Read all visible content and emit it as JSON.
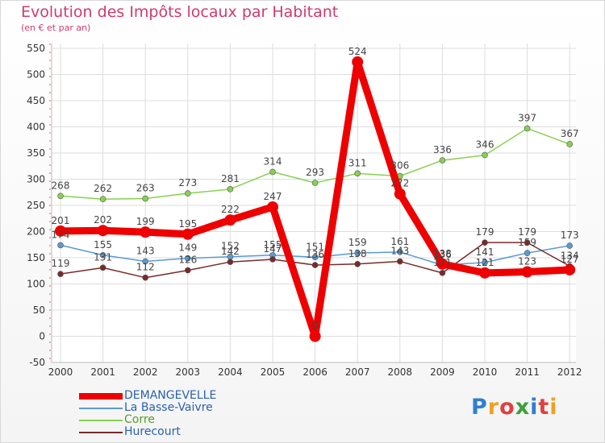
{
  "title": "Evolution des Impôts locaux par Habitant",
  "subtitle": "(en € et par an)",
  "logo_text": "Proxiti",
  "chart_data": {
    "type": "line",
    "x": [
      "2000",
      "2001",
      "2002",
      "2003",
      "2004",
      "2005",
      "2006",
      "2007",
      "2008",
      "2009",
      "2010",
      "2011",
      "2012"
    ],
    "y_ticks": [
      -50,
      0,
      50,
      100,
      150,
      200,
      250,
      300,
      350,
      400,
      450,
      500,
      550
    ],
    "ylim": [
      -50,
      550
    ],
    "grid": true,
    "legend_position": "bottom-left",
    "series": [
      {
        "name": "DEMANGEVELLE",
        "color": "#ee0000",
        "values": [
          201,
          202,
          199,
          195,
          222,
          247,
          0,
          524,
          272,
          138,
          121,
          123,
          127
        ],
        "labels": [
          "201",
          "202",
          "199",
          "195",
          "222",
          "247",
          "0",
          "524",
          "272",
          "138",
          "121",
          "123",
          "127"
        ]
      },
      {
        "name": "La Basse-Vaivre",
        "color": "#5b9bd0",
        "values": [
          174,
          155,
          143,
          149,
          152,
          155,
          151,
          159,
          161,
          136,
          141,
          159,
          173
        ],
        "labels": [
          "174",
          "155",
          "143",
          "149",
          "152",
          "155",
          "151",
          "159",
          "161",
          "136",
          "141",
          "159",
          "173"
        ]
      },
      {
        "name": "Corre",
        "color": "#88d14f",
        "values": [
          268,
          262,
          263,
          273,
          281,
          314,
          293,
          311,
          306,
          336,
          346,
          397,
          367
        ],
        "labels": [
          "268",
          "262",
          "263",
          "273",
          "281",
          "314",
          "293",
          "311",
          "306",
          "336",
          "346",
          "397",
          "367"
        ]
      },
      {
        "name": "Hurecourt",
        "color": "#7a2a2a",
        "values": [
          119,
          131,
          112,
          126,
          142,
          147,
          136,
          138,
          143,
          121,
          179,
          179,
          134
        ],
        "labels": [
          "119",
          "131",
          "112",
          "126",
          "142",
          "147",
          "136",
          "138",
          "143",
          "121",
          "179",
          "179",
          "134"
        ]
      }
    ]
  }
}
